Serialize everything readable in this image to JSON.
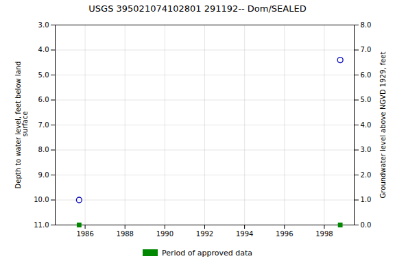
{
  "chart_data": {
    "type": "scatter",
    "title": "USGS 395021074102801 291192-- Dom/SEALED",
    "ylabel": "Depth to water level, feet below land\n surface",
    "y2label": "Groundwater level above NGVD 1929, feet",
    "x": [
      1985.7,
      1998.8
    ],
    "series": [
      {
        "values": [
          10.0,
          4.4
        ],
        "color": "#0000bb",
        "marker": "circle"
      },
      {
        "name": "Period of approved data",
        "values": [
          11.0,
          11.0
        ],
        "color": "#008800",
        "marker": "square"
      }
    ],
    "xlim": [
      1984.5,
      1999.5
    ],
    "xticks": [
      1986,
      1988,
      1990,
      1992,
      1994,
      1996,
      1998
    ],
    "ylim": [
      11.0,
      3.0
    ],
    "yticks": [
      {
        "value": 3,
        "label": "3.0"
      },
      {
        "value": 4,
        "label": "4.0"
      },
      {
        "value": 5,
        "label": "5.0"
      },
      {
        "value": 6,
        "label": "6.0"
      },
      {
        "value": 7,
        "label": "7.0"
      },
      {
        "value": 8,
        "label": "8.0"
      },
      {
        "value": 9,
        "label": "9.0"
      },
      {
        "value": 10,
        "label": "10.0"
      },
      {
        "value": 11,
        "label": "11.0"
      }
    ],
    "y2lim": [
      0.0,
      8.0
    ],
    "y2ticks": [
      {
        "value": 0,
        "label": "0.0"
      },
      {
        "value": 1,
        "label": "1.0"
      },
      {
        "value": 2,
        "label": "2.0"
      },
      {
        "value": 3,
        "label": "3.0"
      },
      {
        "value": 4,
        "label": "4.0"
      },
      {
        "value": 5,
        "label": "5.0"
      },
      {
        "value": 6,
        "label": "6.0"
      },
      {
        "value": 7,
        "label": "7.0"
      },
      {
        "value": 8,
        "label": "8.0"
      }
    ],
    "grid": true,
    "legend": "bottom"
  }
}
